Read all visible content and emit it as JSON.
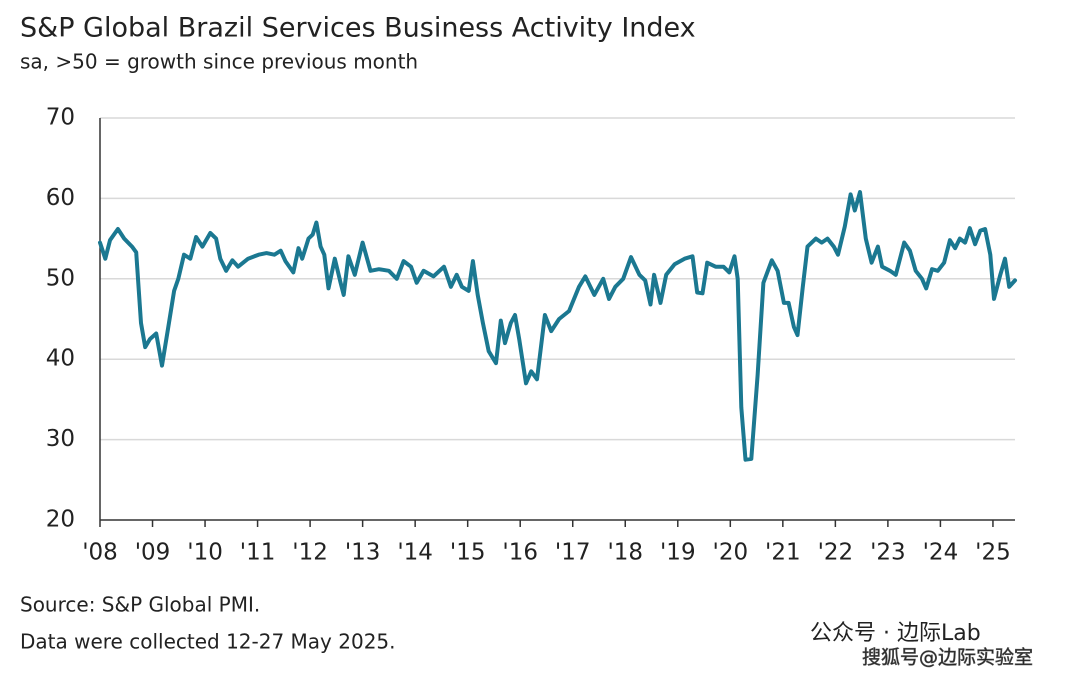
{
  "chart_data": {
    "type": "line",
    "title": "S&P Global Brazil Services Business Activity Index",
    "subtitle": "sa, >50 = growth since previous month",
    "source": "Source: S&P Global PMI.",
    "note": "Data were collected 12-27 May 2025.",
    "watermarks": [
      "公众号 · 边际Lab",
      "搜狐号@边际实验室"
    ],
    "x": [
      2008.0,
      2008.1,
      2008.19,
      2008.34,
      2008.46,
      2008.61,
      2008.69,
      2008.78,
      2008.86,
      2008.95,
      2009.07,
      2009.18,
      2009.3,
      2009.41,
      2009.49,
      2009.6,
      2009.72,
      2009.83,
      2009.95,
      2010.1,
      2010.21,
      2010.29,
      2010.4,
      2010.52,
      2010.63,
      2010.82,
      2011.02,
      2011.17,
      2011.32,
      2011.44,
      2011.53,
      2011.68,
      2011.78,
      2011.85,
      2011.97,
      2012.05,
      2012.12,
      2012.2,
      2012.27,
      2012.35,
      2012.47,
      2012.58,
      2012.64,
      2012.73,
      2012.85,
      2013.0,
      2013.15,
      2013.31,
      2013.5,
      2013.65,
      2013.78,
      2013.92,
      2014.03,
      2014.16,
      2014.35,
      2014.55,
      2014.68,
      2014.79,
      2014.89,
      2015.02,
      2015.1,
      2015.19,
      2015.29,
      2015.4,
      2015.54,
      2015.63,
      2015.71,
      2015.82,
      2015.9,
      2015.98,
      2016.11,
      2016.21,
      2016.32,
      2016.47,
      2016.59,
      2016.74,
      2016.93,
      2017.12,
      2017.24,
      2017.41,
      2017.58,
      2017.69,
      2017.81,
      2017.96,
      2018.11,
      2018.27,
      2018.38,
      2018.48,
      2018.55,
      2018.67,
      2018.78,
      2018.94,
      2019.13,
      2019.28,
      2019.37,
      2019.47,
      2019.56,
      2019.72,
      2019.87,
      2019.98,
      2020.08,
      2020.14,
      2020.21,
      2020.29,
      2020.4,
      2020.52,
      2020.63,
      2020.79,
      2020.9,
      2021.02,
      2021.11,
      2021.21,
      2021.28,
      2021.38,
      2021.47,
      2021.63,
      2021.74,
      2021.85,
      2021.97,
      2022.05,
      2022.18,
      2022.29,
      2022.37,
      2022.47,
      2022.58,
      2022.69,
      2022.81,
      2022.89,
      2023.04,
      2023.15,
      2023.31,
      2023.42,
      2023.53,
      2023.65,
      2023.73,
      2023.84,
      2023.95,
      2024.07,
      2024.18,
      2024.28,
      2024.37,
      2024.47,
      2024.56,
      2024.66,
      2024.76,
      2024.85,
      2024.95,
      2025.02,
      2025.14,
      2025.23,
      2025.31,
      2025.42
    ],
    "series": [
      {
        "name": "Services Business Activity Index",
        "color": "#1b7891",
        "values": [
          54.5,
          52.5,
          54.8,
          56.2,
          55,
          54,
          53.3,
          44.5,
          41.5,
          42.5,
          43.2,
          39.2,
          44,
          48.5,
          50,
          53,
          52.5,
          55.2,
          54,
          55.7,
          55,
          52.5,
          51,
          52.3,
          51.5,
          52.5,
          53,
          53.2,
          53,
          53.5,
          52.2,
          50.8,
          53.8,
          52.5,
          55,
          55.5,
          57,
          54,
          53,
          48.8,
          52.5,
          49.5,
          48,
          52.8,
          50.5,
          54.5,
          51,
          51.2,
          51,
          50,
          52.2,
          51.5,
          49.5,
          51,
          50.3,
          51.5,
          49,
          50.5,
          49,
          48.5,
          52.2,
          48,
          44.5,
          41,
          39.5,
          44.8,
          42,
          44.5,
          45.5,
          42.5,
          37,
          38.5,
          37.5,
          45.5,
          43.5,
          45,
          46,
          49,
          50.3,
          48,
          50,
          47.5,
          49,
          50,
          52.7,
          50.5,
          49.8,
          46.8,
          50.5,
          47,
          50.5,
          51.8,
          52.5,
          52.8,
          48.3,
          48.2,
          52,
          51.5,
          51.5,
          50.8,
          52.8,
          50,
          34,
          27.5,
          27.6,
          38,
          49.5,
          52.3,
          51,
          47,
          47,
          44,
          43,
          49,
          54,
          55,
          54.5,
          55,
          54,
          53,
          56.5,
          60.5,
          58.5,
          60.8,
          55,
          52,
          54,
          51.5,
          51,
          50.5,
          54.5,
          53.5,
          51,
          50,
          48.8,
          51.2,
          51,
          52,
          54.8,
          53.8,
          55,
          54.5,
          56.3,
          54.3,
          56,
          56.2,
          53,
          47.5,
          50.5,
          52.5,
          49,
          49.8
        ]
      }
    ],
    "xlim": [
      2008,
      2025.42
    ],
    "ylim": [
      20,
      70
    ],
    "yticks": [
      20,
      30,
      40,
      50,
      60,
      70
    ],
    "xticks": [
      {
        "value": 2008,
        "label": "'08"
      },
      {
        "value": 2009,
        "label": "'09"
      },
      {
        "value": 2010,
        "label": "'10"
      },
      {
        "value": 2011,
        "label": "'11"
      },
      {
        "value": 2012,
        "label": "'12"
      },
      {
        "value": 2013,
        "label": "'13"
      },
      {
        "value": 2014,
        "label": "'14"
      },
      {
        "value": 2015,
        "label": "'15"
      },
      {
        "value": 2016,
        "label": "'16"
      },
      {
        "value": 2017,
        "label": "'17"
      },
      {
        "value": 2018,
        "label": "'18"
      },
      {
        "value": 2019,
        "label": "'19"
      },
      {
        "value": 2020,
        "label": "'20"
      },
      {
        "value": 2021,
        "label": "'21"
      },
      {
        "value": 2022,
        "label": "'22"
      },
      {
        "value": 2023,
        "label": "'23"
      },
      {
        "value": 2024,
        "label": "'24"
      },
      {
        "value": 2025,
        "label": "'25"
      }
    ],
    "grid": true
  }
}
